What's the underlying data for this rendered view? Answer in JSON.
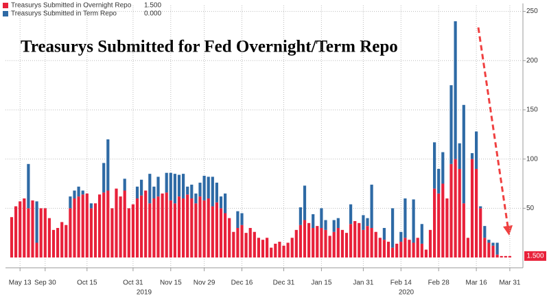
{
  "chart_data": {
    "type": "stacked_bar",
    "title": "Treasurys Submitted for Fed Overnight/Term Repo",
    "categories": [
      null,
      null,
      "May 13",
      null,
      null,
      null,
      null,
      null,
      "Sep 30",
      null,
      null,
      null,
      null,
      null,
      null,
      null,
      null,
      null,
      "Oct 15",
      null,
      null,
      null,
      null,
      null,
      null,
      null,
      null,
      null,
      null,
      "Oct 31",
      null,
      null,
      null,
      null,
      null,
      null,
      null,
      null,
      "Nov 15",
      null,
      null,
      null,
      null,
      null,
      null,
      null,
      "Nov 29",
      null,
      null,
      null,
      null,
      null,
      null,
      null,
      null,
      "Dec 16",
      null,
      null,
      null,
      null,
      null,
      null,
      null,
      null,
      null,
      "Dec 31",
      null,
      null,
      null,
      null,
      null,
      null,
      null,
      null,
      "Jan 15",
      null,
      null,
      null,
      null,
      null,
      null,
      null,
      null,
      null,
      "Jan 31",
      null,
      null,
      null,
      null,
      null,
      null,
      null,
      null,
      "Feb 14",
      null,
      null,
      null,
      null,
      null,
      null,
      null,
      null,
      "Feb 28",
      null,
      null,
      null,
      null,
      null,
      null,
      null,
      null,
      "Mar 16",
      null,
      null,
      null,
      null,
      null,
      null,
      null,
      "Mar 31"
    ],
    "years": [
      "2019",
      "2020"
    ],
    "series": [
      {
        "name": "Treasurys Submitted in Overnight Repo",
        "value_label": "1.500",
        "color": "#e8213a",
        "values": [
          41,
          52,
          57,
          60,
          50,
          58,
          15,
          50,
          50,
          40,
          28,
          30,
          36,
          33,
          50,
          60,
          62,
          64,
          65,
          50,
          55,
          64,
          66,
          68,
          50,
          70,
          62,
          68,
          50,
          54,
          60,
          63,
          68,
          55,
          60,
          62,
          65,
          66,
          58,
          55,
          62,
          60,
          64,
          60,
          55,
          62,
          58,
          60,
          52,
          56,
          50,
          45,
          40,
          26,
          30,
          33,
          25,
          30,
          26,
          20,
          18,
          20,
          10,
          14,
          16,
          12,
          15,
          20,
          28,
          33,
          38,
          35,
          30,
          32,
          30,
          28,
          22,
          26,
          30,
          28,
          25,
          34,
          37,
          35,
          28,
          32,
          30,
          26,
          20,
          18,
          16,
          10,
          14,
          16,
          20,
          18,
          15,
          20,
          14,
          8,
          28,
          70,
          65,
          75,
          60,
          95,
          100,
          90,
          55,
          20,
          100,
          90,
          50,
          20,
          15,
          12,
          3,
          1.5,
          1.5,
          1.5
        ]
      },
      {
        "name": "Treasurys Submitted in Term Repo",
        "value_label": "0.000",
        "color": "#2e6aa5",
        "values": [
          0,
          0,
          0,
          0,
          45,
          0,
          42,
          0,
          0,
          0,
          0,
          0,
          0,
          0,
          12,
          8,
          10,
          4,
          0,
          5,
          0,
          0,
          30,
          52,
          0,
          0,
          0,
          12,
          0,
          0,
          12,
          16,
          0,
          30,
          12,
          20,
          0,
          20,
          28,
          30,
          22,
          25,
          8,
          14,
          10,
          14,
          25,
          22,
          30,
          20,
          12,
          20,
          0,
          0,
          17,
          12,
          0,
          0,
          0,
          0,
          0,
          0,
          0,
          0,
          0,
          0,
          0,
          0,
          0,
          18,
          35,
          0,
          14,
          0,
          20,
          10,
          0,
          12,
          10,
          0,
          0,
          20,
          0,
          0,
          15,
          8,
          44,
          0,
          0,
          12,
          0,
          40,
          0,
          10,
          40,
          0,
          44,
          0,
          20,
          0,
          0,
          47,
          25,
          32,
          0,
          80,
          140,
          26,
          100,
          0,
          6,
          38,
          2,
          12,
          3,
          3,
          12,
          0,
          0,
          0
        ]
      }
    ],
    "ylim": [
      0,
      256
    ],
    "yticks": [
      50,
      100,
      150,
      200,
      250
    ],
    "grid": true
  }
}
